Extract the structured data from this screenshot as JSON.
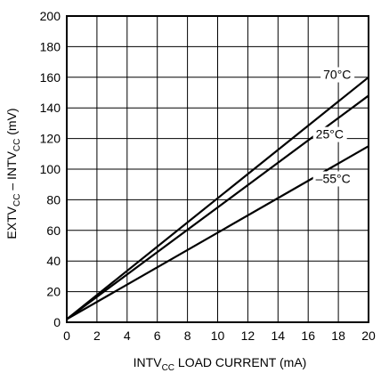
{
  "chart_data": {
    "type": "line",
    "xlim": [
      0,
      20
    ],
    "ylim": [
      0,
      200
    ],
    "x_ticks": [
      "0",
      "2",
      "4",
      "6",
      "8",
      "10",
      "12",
      "14",
      "16",
      "18",
      "20"
    ],
    "y_ticks": [
      "0",
      "20",
      "40",
      "60",
      "80",
      "100",
      "120",
      "140",
      "160",
      "180",
      "200"
    ],
    "xlabel": {
      "pre": "INTV",
      "sub": "CC",
      "post": " LOAD CURRENT (mA)"
    },
    "ylabel": {
      "p1": "EXTV",
      "s1": "CC",
      "p2": " – INTV",
      "s2": "CC",
      "p3": " (mV)"
    },
    "grid": true,
    "line_color": "#000000",
    "series": [
      {
        "name": "70°C",
        "x": [
          0,
          20
        ],
        "y": [
          2,
          160
        ],
        "label_x": 17.0,
        "label_y": 159
      },
      {
        "name": "25°C",
        "x": [
          0,
          20
        ],
        "y": [
          2,
          148
        ],
        "label_x": 16.5,
        "label_y": 120
      },
      {
        "name": "–55°C",
        "x": [
          0,
          20
        ],
        "y": [
          2,
          115
        ],
        "label_x": 16.5,
        "label_y": 91
      }
    ]
  }
}
